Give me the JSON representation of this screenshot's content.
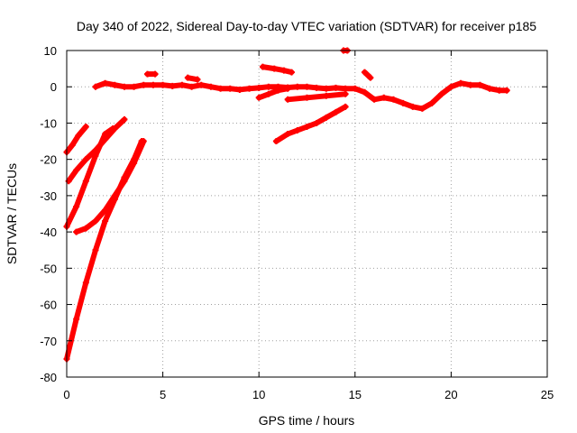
{
  "chart_data": {
    "type": "scatter",
    "title": "Day 340 of 2022, Sidereal Day-to-day VTEC variation (SDTVAR) for receiver p185",
    "xlabel": "GPS time / hours",
    "ylabel": "SDTVAR / TECUs",
    "xlim": [
      0,
      25
    ],
    "ylim": [
      -80,
      10
    ],
    "xticks": [
      0,
      5,
      10,
      15,
      20,
      25
    ],
    "yticks": [
      -80,
      -70,
      -60,
      -50,
      -40,
      -30,
      -20,
      -10,
      0,
      10
    ],
    "grid": true,
    "series_color": "#ff0000",
    "series": [
      {
        "name": "track-1",
        "points": [
          [
            0.0,
            -18
          ],
          [
            0.3,
            -16
          ],
          [
            0.6,
            -13.5
          ],
          [
            1.0,
            -11
          ]
        ]
      },
      {
        "name": "track-2",
        "points": [
          [
            0.1,
            -26
          ],
          [
            0.5,
            -23
          ],
          [
            1.0,
            -20
          ],
          [
            1.5,
            -17.5
          ],
          [
            2.0,
            -14.5
          ],
          [
            2.5,
            -11.5
          ],
          [
            3.0,
            -9
          ]
        ]
      },
      {
        "name": "track-3",
        "points": [
          [
            0.0,
            -38.5
          ],
          [
            0.5,
            -33
          ],
          [
            1.0,
            -26
          ],
          [
            1.5,
            -19
          ],
          [
            2.0,
            -13
          ],
          [
            2.4,
            -11.5
          ]
        ]
      },
      {
        "name": "track-4",
        "points": [
          [
            0.5,
            -40
          ],
          [
            1.0,
            -39
          ],
          [
            1.5,
            -37
          ],
          [
            2.0,
            -34
          ],
          [
            2.5,
            -30
          ],
          [
            3.0,
            -26
          ],
          [
            3.5,
            -21
          ],
          [
            4.0,
            -15
          ]
        ]
      },
      {
        "name": "track-5",
        "points": [
          [
            0.0,
            -75
          ],
          [
            0.5,
            -64
          ],
          [
            1.0,
            -54
          ],
          [
            1.5,
            -45
          ],
          [
            2.0,
            -37
          ],
          [
            2.5,
            -31
          ],
          [
            3.0,
            -25
          ],
          [
            3.5,
            -20
          ],
          [
            3.9,
            -15
          ]
        ]
      },
      {
        "name": "track-6",
        "points": [
          [
            1.5,
            0
          ],
          [
            2.0,
            1
          ],
          [
            2.5,
            0.5
          ],
          [
            3.0,
            0
          ],
          [
            3.5,
            0
          ],
          [
            4.0,
            0.5
          ],
          [
            4.5,
            0.5
          ],
          [
            5.0,
            0.5
          ],
          [
            5.5,
            0.2
          ],
          [
            6.0,
            0.5
          ],
          [
            6.5,
            0
          ],
          [
            7.0,
            0.5
          ],
          [
            7.5,
            0
          ],
          [
            8.0,
            -0.5
          ],
          [
            8.5,
            -0.5
          ],
          [
            9.0,
            -0.8
          ],
          [
            9.5,
            -0.5
          ],
          [
            10.0,
            -0.3
          ],
          [
            10.5,
            0
          ],
          [
            11.0,
            0
          ],
          [
            11.5,
            -0.2
          ],
          [
            12.0,
            0
          ],
          [
            12.5,
            0
          ],
          [
            13.0,
            -0.3
          ],
          [
            13.5,
            -0.5
          ],
          [
            14.0,
            -0.3
          ],
          [
            14.5,
            -0.5
          ],
          [
            15.0,
            -0.5
          ],
          [
            15.5,
            -1.5
          ],
          [
            16.0,
            -3.5
          ],
          [
            16.5,
            -3
          ],
          [
            17.0,
            -3.5
          ],
          [
            17.5,
            -4.5
          ],
          [
            18.0,
            -5.5
          ],
          [
            18.5,
            -6
          ],
          [
            19.0,
            -4.5
          ],
          [
            19.5,
            -2
          ],
          [
            20.0,
            0
          ],
          [
            20.5,
            1
          ],
          [
            21.0,
            0.5
          ],
          [
            21.5,
            0.5
          ],
          [
            22.0,
            -0.5
          ],
          [
            22.5,
            -1
          ],
          [
            22.9,
            -1
          ]
        ]
      },
      {
        "name": "track-7",
        "points": [
          [
            4.2,
            3.5
          ],
          [
            4.6,
            3.5
          ]
        ]
      },
      {
        "name": "track-8",
        "points": [
          [
            6.3,
            2.5
          ],
          [
            6.8,
            2
          ]
        ]
      },
      {
        "name": "track-9",
        "points": [
          [
            10.2,
            5.5
          ],
          [
            10.8,
            5
          ],
          [
            11.3,
            4.5
          ],
          [
            11.7,
            4
          ]
        ]
      },
      {
        "name": "track-10",
        "points": [
          [
            10.0,
            -3
          ],
          [
            10.5,
            -2
          ],
          [
            11.0,
            -1
          ],
          [
            11.5,
            -0.5
          ]
        ]
      },
      {
        "name": "track-11",
        "points": [
          [
            11.5,
            -3.5
          ],
          [
            12.5,
            -3
          ],
          [
            13.5,
            -2.5
          ],
          [
            14.5,
            -2
          ]
        ]
      },
      {
        "name": "track-12",
        "points": [
          [
            14.4,
            10
          ],
          [
            14.6,
            10
          ]
        ]
      },
      {
        "name": "track-13",
        "points": [
          [
            15.5,
            4
          ],
          [
            15.8,
            2.5
          ]
        ]
      },
      {
        "name": "track-14",
        "points": [
          [
            10.9,
            -15
          ],
          [
            11.5,
            -13
          ],
          [
            12.0,
            -12
          ],
          [
            12.5,
            -11
          ],
          [
            13.0,
            -10
          ],
          [
            13.5,
            -8.5
          ],
          [
            14.0,
            -7
          ],
          [
            14.5,
            -5.5
          ]
        ]
      }
    ]
  }
}
